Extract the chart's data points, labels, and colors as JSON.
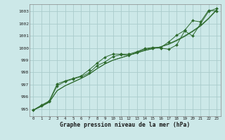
{
  "title": "Graphe pression niveau de la mer (hPa)",
  "bg_color": "#cce8e8",
  "grid_color": "#aacccc",
  "line_color": "#2d6a2d",
  "marker_color": "#2d6a2d",
  "xlim": [
    -0.5,
    23.5
  ],
  "ylim": [
    994.4,
    1003.6
  ],
  "yticks": [
    995,
    996,
    997,
    998,
    999,
    1000,
    1001,
    1002,
    1003
  ],
  "xticks": [
    0,
    1,
    2,
    3,
    4,
    5,
    6,
    7,
    8,
    9,
    10,
    11,
    12,
    13,
    14,
    15,
    16,
    17,
    18,
    19,
    20,
    21,
    22,
    23
  ],
  "series1": [
    994.9,
    995.25,
    995.6,
    996.9,
    997.25,
    997.45,
    997.65,
    997.95,
    998.55,
    998.85,
    999.3,
    999.45,
    999.4,
    999.65,
    999.9,
    1000.0,
    1000.0,
    999.9,
    1000.25,
    1001.4,
    1001.0,
    1002.0,
    1003.0,
    1003.25
  ],
  "series2": [
    994.9,
    995.3,
    995.65,
    997.05,
    997.3,
    997.5,
    997.7,
    998.2,
    998.75,
    999.25,
    999.5,
    999.5,
    999.5,
    999.7,
    999.95,
    1000.05,
    1000.05,
    1000.5,
    1001.05,
    1001.45,
    1002.25,
    1002.15,
    1003.1,
    1003.05
  ],
  "trend1": [
    994.9,
    995.2,
    995.55,
    996.5,
    996.9,
    997.2,
    997.5,
    997.85,
    998.3,
    998.7,
    999.0,
    999.2,
    999.4,
    999.6,
    999.8,
    999.95,
    1000.1,
    1000.3,
    1000.6,
    1000.95,
    1001.35,
    1001.8,
    1002.4,
    1003.1
  ],
  "trend2": [
    994.9,
    995.2,
    995.55,
    996.5,
    996.9,
    997.2,
    997.5,
    997.85,
    998.3,
    998.7,
    999.0,
    999.2,
    999.4,
    999.6,
    999.8,
    999.95,
    1000.1,
    1000.35,
    1000.65,
    1001.0,
    1001.4,
    1001.85,
    1002.45,
    1003.15
  ]
}
